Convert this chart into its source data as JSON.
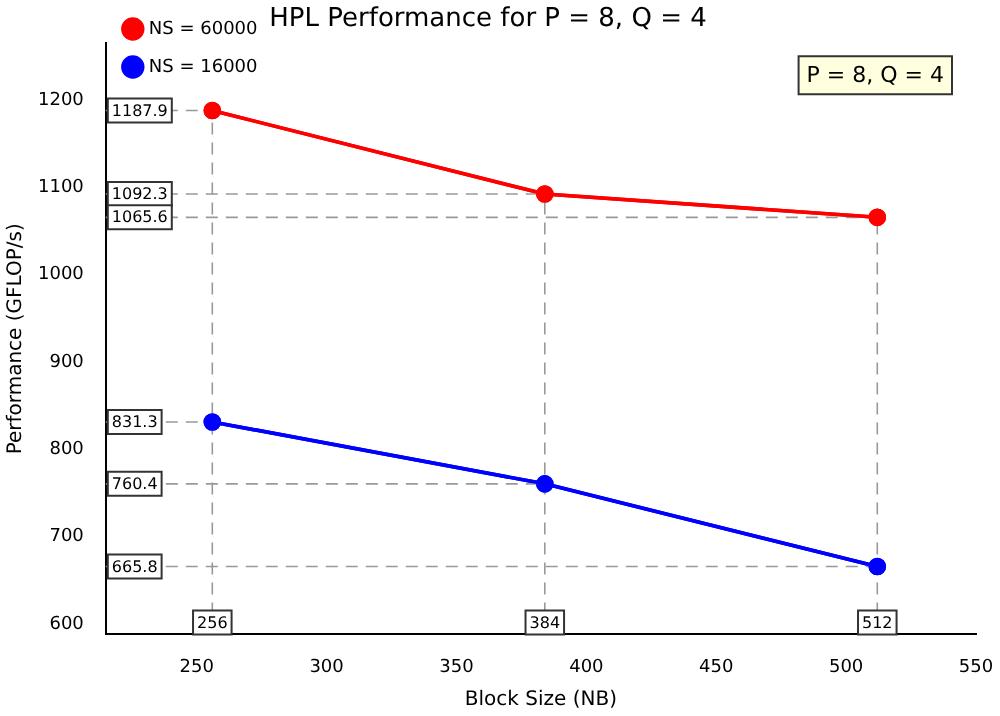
{
  "chart_data": {
    "type": "line",
    "title": "HPL Performance for P = 8, Q = 4",
    "xlabel": "Block Size (NB)",
    "ylabel": "Performance (GFLOP/s)",
    "x": [
      256,
      384,
      512
    ],
    "series": [
      {
        "name": "NS = 60000",
        "color": "#ff0000",
        "values": [
          1187.9,
          1092.3,
          1065.6
        ]
      },
      {
        "name": "NS = 16000",
        "color": "#0000ff",
        "values": [
          831.3,
          760.4,
          665.8
        ]
      }
    ],
    "xlim": [
      215,
      550
    ],
    "xticks": [
      250,
      300,
      350,
      400,
      450,
      500,
      550
    ],
    "ylim": [
      588,
      1265
    ],
    "yticks": [
      600,
      700,
      800,
      900,
      1000,
      1100,
      1200
    ],
    "grid": false,
    "legend": "top left",
    "marker": "circle",
    "line_style": "solid",
    "ref_lines": [
      {
        "axis": "y",
        "value": 1187.9,
        "label": "1187.9",
        "color": "#999999",
        "line_style": "dashed"
      },
      {
        "axis": "y",
        "value": 1092.3,
        "label": "1092.3",
        "color": "#999999",
        "line_style": "dashed"
      },
      {
        "axis": "y",
        "value": 1065.6,
        "label": "1065.6",
        "color": "#999999",
        "line_style": "dashed"
      },
      {
        "axis": "y",
        "value": 831.3,
        "label": "831.3",
        "color": "#999999",
        "line_style": "dashed"
      },
      {
        "axis": "y",
        "value": 760.4,
        "label": "760.4",
        "color": "#999999",
        "line_style": "dashed"
      },
      {
        "axis": "y",
        "value": 665.8,
        "label": "665.8",
        "color": "#999999",
        "line_style": "dashed"
      },
      {
        "axis": "x",
        "value": 256,
        "label": "256",
        "color": "#999999",
        "line_style": "dashed"
      },
      {
        "axis": "x",
        "value": 384,
        "label": "384",
        "color": "#999999",
        "line_style": "dashed"
      },
      {
        "axis": "x",
        "value": 512,
        "label": "512",
        "color": "#999999",
        "line_style": "dashed"
      }
    ],
    "annotations": [
      "P = 8, Q = 4"
    ]
  }
}
